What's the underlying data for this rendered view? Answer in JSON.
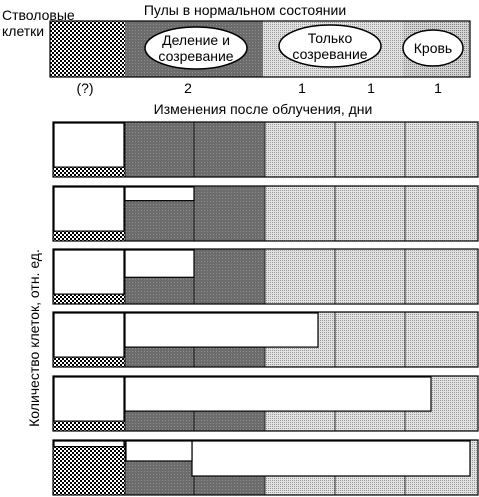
{
  "header": {
    "stem_label_line1": "Стволовые",
    "stem_label_line2": "клетки",
    "pools_title": "Пулы в нормальном состоянии",
    "pools": [
      {
        "label_line1": "Деление и",
        "label_line2": "созревание"
      },
      {
        "label_line1": "Только",
        "label_line2": "созревание"
      },
      {
        "label_line1": "Кровь",
        "label_line2": ""
      }
    ]
  },
  "durations": [
    "(?)",
    "2",
    "1",
    "1",
    "1"
  ],
  "changes_title": "Изменения после облучения, дни",
  "y_axis_label": "Количество клеток, отн. ед.",
  "chart_data": {
    "type": "diagram",
    "compartments": [
      "Стволовые клетки",
      "Деление и созревание",
      "Деление и созревание",
      "Только созревание",
      "Только созревание",
      "Кровь"
    ],
    "panels": [
      {
        "cells_remaining": [
          0.18,
          0,
          0,
          0,
          0,
          0
        ]
      },
      {
        "cells_remaining": [
          0.18,
          0.4,
          0,
          0,
          0,
          0
        ]
      },
      {
        "cells_remaining": [
          0.18,
          0.8,
          0,
          0,
          0,
          0
        ]
      },
      {
        "cells_remaining": [
          0.18,
          1,
          1,
          1,
          0,
          0
        ]
      },
      {
        "cells_remaining": [
          0.18,
          1,
          1,
          1,
          1,
          1
        ]
      },
      {
        "cells_remaining": [
          0.88,
          1,
          1,
          1,
          1,
          1
        ]
      }
    ]
  }
}
